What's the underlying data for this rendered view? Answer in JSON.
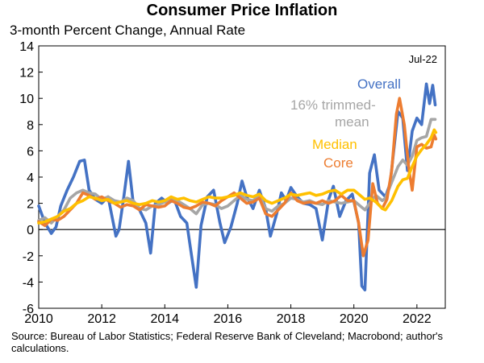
{
  "chart_data": {
    "type": "line",
    "title": "Consumer Price Inflation",
    "subtitle": "3-month Percent Change, Annual Rate",
    "xlabel": "",
    "ylabel": "",
    "xlim": [
      2010,
      2022.9
    ],
    "ylim": [
      -6,
      14
    ],
    "x_ticks": [
      "2010",
      "2012",
      "2014",
      "2016",
      "2018",
      "2020",
      "2022"
    ],
    "y_ticks": [
      "-6",
      "-4",
      "-2",
      "0",
      "2",
      "4",
      "6",
      "8",
      "10",
      "12",
      "14"
    ],
    "grid": false,
    "legend": "inline labels",
    "date_annotation": "Jul-22",
    "source": "Source: Bureau of Labor Statistics; Federal Reserve Bank of Cleveland; Macrobond; author's calculations.",
    "series": [
      {
        "name": "Overall",
        "color": "#4472C4",
        "points": [
          [
            2010.0,
            1.8
          ],
          [
            2010.2,
            0.5
          ],
          [
            2010.4,
            -0.3
          ],
          [
            2010.55,
            0.2
          ],
          [
            2010.7,
            1.8
          ],
          [
            2010.9,
            3.0
          ],
          [
            2011.1,
            4.0
          ],
          [
            2011.3,
            5.2
          ],
          [
            2011.45,
            5.3
          ],
          [
            2011.6,
            3.0
          ],
          [
            2011.8,
            2.3
          ],
          [
            2012.0,
            2.0
          ],
          [
            2012.2,
            2.5
          ],
          [
            2012.45,
            -0.5
          ],
          [
            2012.55,
            0.0
          ],
          [
            2012.7,
            2.5
          ],
          [
            2012.85,
            5.2
          ],
          [
            2013.0,
            2.0
          ],
          [
            2013.2,
            1.5
          ],
          [
            2013.4,
            0.5
          ],
          [
            2013.55,
            -1.8
          ],
          [
            2013.7,
            2.0
          ],
          [
            2013.9,
            2.4
          ],
          [
            2014.1,
            2.0
          ],
          [
            2014.3,
            2.3
          ],
          [
            2014.5,
            1.0
          ],
          [
            2014.7,
            0.5
          ],
          [
            2014.85,
            -2.0
          ],
          [
            2015.0,
            -4.4
          ],
          [
            2015.15,
            0.3
          ],
          [
            2015.35,
            2.5
          ],
          [
            2015.55,
            3.0
          ],
          [
            2015.75,
            0.5
          ],
          [
            2015.9,
            -1.0
          ],
          [
            2016.1,
            0.2
          ],
          [
            2016.3,
            2.0
          ],
          [
            2016.45,
            3.7
          ],
          [
            2016.6,
            2.5
          ],
          [
            2016.8,
            1.6
          ],
          [
            2017.0,
            3.0
          ],
          [
            2017.2,
            1.6
          ],
          [
            2017.35,
            -0.5
          ],
          [
            2017.55,
            1.2
          ],
          [
            2017.7,
            2.8
          ],
          [
            2017.85,
            2.2
          ],
          [
            2018.0,
            3.2
          ],
          [
            2018.2,
            2.5
          ],
          [
            2018.4,
            2.0
          ],
          [
            2018.6,
            1.9
          ],
          [
            2018.8,
            1.6
          ],
          [
            2019.0,
            -0.8
          ],
          [
            2019.2,
            2.3
          ],
          [
            2019.35,
            3.3
          ],
          [
            2019.55,
            1.0
          ],
          [
            2019.75,
            2.2
          ],
          [
            2019.95,
            2.7
          ],
          [
            2020.15,
            0.5
          ],
          [
            2020.25,
            -4.3
          ],
          [
            2020.35,
            -4.6
          ],
          [
            2020.5,
            4.3
          ],
          [
            2020.65,
            5.7
          ],
          [
            2020.8,
            3.0
          ],
          [
            2021.0,
            2.5
          ],
          [
            2021.15,
            3.5
          ],
          [
            2021.3,
            6.8
          ],
          [
            2021.4,
            9.0
          ],
          [
            2021.55,
            8.5
          ],
          [
            2021.7,
            4.5
          ],
          [
            2021.85,
            7.5
          ],
          [
            2022.0,
            8.5
          ],
          [
            2022.15,
            8.0
          ],
          [
            2022.3,
            11.1
          ],
          [
            2022.4,
            9.6
          ],
          [
            2022.5,
            11.0
          ],
          [
            2022.58,
            9.5
          ]
        ]
      },
      {
        "name": "16% trimmed-mean",
        "color": "#A6A6A6",
        "points": [
          [
            2010.0,
            0.7
          ],
          [
            2010.2,
            0.9
          ],
          [
            2010.4,
            0.5
          ],
          [
            2010.6,
            1.0
          ],
          [
            2010.8,
            1.5
          ],
          [
            2011.0,
            2.4
          ],
          [
            2011.2,
            2.8
          ],
          [
            2011.4,
            3.0
          ],
          [
            2011.6,
            2.8
          ],
          [
            2011.8,
            2.7
          ],
          [
            2012.0,
            2.3
          ],
          [
            2012.2,
            2.5
          ],
          [
            2012.4,
            2.2
          ],
          [
            2012.6,
            2.1
          ],
          [
            2012.8,
            2.4
          ],
          [
            2013.0,
            2.2
          ],
          [
            2013.2,
            1.6
          ],
          [
            2013.4,
            1.5
          ],
          [
            2013.6,
            1.8
          ],
          [
            2013.8,
            1.9
          ],
          [
            2014.0,
            2.1
          ],
          [
            2014.2,
            2.3
          ],
          [
            2014.4,
            2.2
          ],
          [
            2014.6,
            1.9
          ],
          [
            2014.8,
            1.6
          ],
          [
            2015.0,
            1.2
          ],
          [
            2015.2,
            1.9
          ],
          [
            2015.4,
            2.0
          ],
          [
            2015.6,
            1.9
          ],
          [
            2015.8,
            1.6
          ],
          [
            2016.0,
            1.8
          ],
          [
            2016.2,
            2.2
          ],
          [
            2016.4,
            2.6
          ],
          [
            2016.6,
            2.3
          ],
          [
            2016.8,
            2.2
          ],
          [
            2017.0,
            2.6
          ],
          [
            2017.2,
            1.6
          ],
          [
            2017.4,
            1.4
          ],
          [
            2017.6,
            1.8
          ],
          [
            2017.8,
            2.0
          ],
          [
            2018.0,
            2.4
          ],
          [
            2018.2,
            2.3
          ],
          [
            2018.4,
            2.1
          ],
          [
            2018.6,
            2.2
          ],
          [
            2018.8,
            2.0
          ],
          [
            2019.0,
            1.9
          ],
          [
            2019.2,
            2.2
          ],
          [
            2019.4,
            2.1
          ],
          [
            2019.6,
            2.0
          ],
          [
            2019.8,
            2.1
          ],
          [
            2020.0,
            2.2
          ],
          [
            2020.2,
            1.8
          ],
          [
            2020.35,
            1.5
          ],
          [
            2020.5,
            2.0
          ],
          [
            2020.7,
            2.6
          ],
          [
            2020.9,
            2.2
          ],
          [
            2021.0,
            2.4
          ],
          [
            2021.2,
            3.6
          ],
          [
            2021.4,
            4.8
          ],
          [
            2021.55,
            5.3
          ],
          [
            2021.7,
            4.9
          ],
          [
            2021.85,
            5.6
          ],
          [
            2022.0,
            6.8
          ],
          [
            2022.15,
            7.0
          ],
          [
            2022.3,
            7.1
          ],
          [
            2022.45,
            8.4
          ],
          [
            2022.58,
            8.4
          ]
        ]
      },
      {
        "name": "Median",
        "color": "#FFC000",
        "points": [
          [
            2010.0,
            0.5
          ],
          [
            2010.2,
            0.6
          ],
          [
            2010.4,
            0.8
          ],
          [
            2010.6,
            1.0
          ],
          [
            2010.8,
            1.4
          ],
          [
            2011.0,
            1.6
          ],
          [
            2011.2,
            2.0
          ],
          [
            2011.4,
            2.2
          ],
          [
            2011.6,
            2.5
          ],
          [
            2011.8,
            2.4
          ],
          [
            2012.0,
            2.2
          ],
          [
            2012.2,
            2.3
          ],
          [
            2012.4,
            2.0
          ],
          [
            2012.6,
            2.1
          ],
          [
            2012.8,
            2.2
          ],
          [
            2013.0,
            2.0
          ],
          [
            2013.2,
            1.9
          ],
          [
            2013.4,
            2.0
          ],
          [
            2013.6,
            2.2
          ],
          [
            2013.8,
            2.1
          ],
          [
            2014.0,
            2.2
          ],
          [
            2014.2,
            2.5
          ],
          [
            2014.4,
            2.3
          ],
          [
            2014.6,
            2.4
          ],
          [
            2014.8,
            2.2
          ],
          [
            2015.0,
            2.1
          ],
          [
            2015.2,
            2.3
          ],
          [
            2015.4,
            2.5
          ],
          [
            2015.6,
            2.4
          ],
          [
            2015.8,
            2.4
          ],
          [
            2016.0,
            2.5
          ],
          [
            2016.2,
            2.6
          ],
          [
            2016.4,
            2.8
          ],
          [
            2016.6,
            2.6
          ],
          [
            2016.8,
            2.5
          ],
          [
            2017.0,
            2.7
          ],
          [
            2017.2,
            2.2
          ],
          [
            2017.4,
            2.0
          ],
          [
            2017.6,
            2.2
          ],
          [
            2017.8,
            2.4
          ],
          [
            2018.0,
            2.7
          ],
          [
            2018.2,
            2.6
          ],
          [
            2018.4,
            2.7
          ],
          [
            2018.6,
            2.8
          ],
          [
            2018.8,
            2.6
          ],
          [
            2019.0,
            2.7
          ],
          [
            2019.2,
            2.9
          ],
          [
            2019.4,
            3.0
          ],
          [
            2019.6,
            2.7
          ],
          [
            2019.8,
            3.0
          ],
          [
            2020.0,
            3.0
          ],
          [
            2020.2,
            2.6
          ],
          [
            2020.35,
            2.3
          ],
          [
            2020.5,
            2.4
          ],
          [
            2020.7,
            2.1
          ],
          [
            2020.9,
            1.6
          ],
          [
            2021.0,
            1.5
          ],
          [
            2021.2,
            2.2
          ],
          [
            2021.4,
            3.3
          ],
          [
            2021.55,
            3.8
          ],
          [
            2021.7,
            3.9
          ],
          [
            2021.85,
            4.8
          ],
          [
            2022.0,
            5.6
          ],
          [
            2022.15,
            6.1
          ],
          [
            2022.3,
            6.5
          ],
          [
            2022.45,
            7.0
          ],
          [
            2022.55,
            7.6
          ],
          [
            2022.6,
            7.4
          ]
        ]
      },
      {
        "name": "Core",
        "color": "#ED7D31",
        "points": [
          [
            2010.0,
            0.6
          ],
          [
            2010.2,
            0.3
          ],
          [
            2010.4,
            0.8
          ],
          [
            2010.6,
            0.7
          ],
          [
            2010.8,
            1.0
          ],
          [
            2011.0,
            1.5
          ],
          [
            2011.2,
            2.0
          ],
          [
            2011.4,
            2.8
          ],
          [
            2011.6,
            2.6
          ],
          [
            2011.8,
            2.3
          ],
          [
            2012.0,
            2.5
          ],
          [
            2012.2,
            2.2
          ],
          [
            2012.4,
            2.0
          ],
          [
            2012.6,
            1.7
          ],
          [
            2012.8,
            1.9
          ],
          [
            2013.0,
            1.8
          ],
          [
            2013.2,
            1.5
          ],
          [
            2013.4,
            1.9
          ],
          [
            2013.6,
            1.8
          ],
          [
            2013.8,
            1.7
          ],
          [
            2014.0,
            1.8
          ],
          [
            2014.2,
            2.2
          ],
          [
            2014.4,
            2.0
          ],
          [
            2014.6,
            1.7
          ],
          [
            2014.8,
            1.6
          ],
          [
            2015.0,
            1.8
          ],
          [
            2015.2,
            2.1
          ],
          [
            2015.4,
            2.0
          ],
          [
            2015.6,
            1.8
          ],
          [
            2015.8,
            2.2
          ],
          [
            2016.0,
            2.5
          ],
          [
            2016.2,
            2.8
          ],
          [
            2016.4,
            2.4
          ],
          [
            2016.6,
            2.0
          ],
          [
            2016.8,
            2.1
          ],
          [
            2017.0,
            2.4
          ],
          [
            2017.2,
            1.2
          ],
          [
            2017.4,
            1.0
          ],
          [
            2017.6,
            1.5
          ],
          [
            2017.8,
            2.0
          ],
          [
            2018.0,
            2.8
          ],
          [
            2018.2,
            2.2
          ],
          [
            2018.4,
            2.0
          ],
          [
            2018.6,
            2.1
          ],
          [
            2018.8,
            2.0
          ],
          [
            2019.0,
            2.2
          ],
          [
            2019.2,
            2.0
          ],
          [
            2019.4,
            2.2
          ],
          [
            2019.6,
            2.6
          ],
          [
            2019.8,
            2.2
          ],
          [
            2020.0,
            2.2
          ],
          [
            2020.15,
            0.5
          ],
          [
            2020.3,
            -2.0
          ],
          [
            2020.45,
            -0.8
          ],
          [
            2020.6,
            3.5
          ],
          [
            2020.75,
            2.0
          ],
          [
            2020.9,
            1.6
          ],
          [
            2021.05,
            2.3
          ],
          [
            2021.2,
            4.5
          ],
          [
            2021.35,
            8.8
          ],
          [
            2021.45,
            10.0
          ],
          [
            2021.6,
            8.0
          ],
          [
            2021.75,
            4.5
          ],
          [
            2021.85,
            3.0
          ],
          [
            2022.0,
            6.3
          ],
          [
            2022.15,
            6.5
          ],
          [
            2022.3,
            6.2
          ],
          [
            2022.45,
            6.3
          ],
          [
            2022.55,
            7.2
          ],
          [
            2022.6,
            6.9
          ]
        ]
      }
    ]
  }
}
